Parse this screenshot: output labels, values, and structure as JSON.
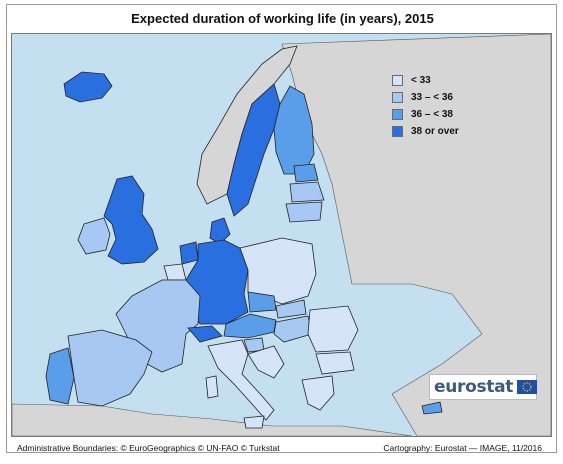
{
  "title": "Expected duration of working life (in years), 2015",
  "legend": [
    {
      "label": "< 33",
      "color": "#d5e4f9"
    },
    {
      "label": "33 – < 36",
      "color": "#a7c8f3"
    },
    {
      "label": "36 – < 38",
      "color": "#5a9de9"
    },
    {
      "label": "38 or over",
      "color": "#2a6fe0"
    }
  ],
  "colors": {
    "sea": "#c4dff0",
    "non_eu_land": "#d6d6d6",
    "border": "#222222"
  },
  "logo": {
    "text": "eurostat"
  },
  "footer": {
    "left": "Administrative Boundaries: © EuroGeographics © UN-FAO © Turkstat",
    "right": "Cartography: Eurostat — IMAGE, 11/2016"
  }
}
